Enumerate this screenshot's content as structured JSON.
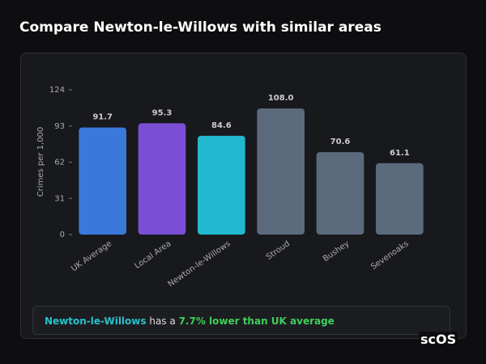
{
  "header": {
    "title": "Compare Newton-le-Willows with similar areas"
  },
  "chart_data": {
    "type": "bar",
    "y_label": "Crimes per 1,000",
    "categories": [
      "UK Average",
      "Local Area",
      "Newton-le-Willows",
      "Stroud",
      "Bushey",
      "Sevenoaks"
    ],
    "values": [
      91.7,
      95.3,
      84.6,
      108,
      70.6,
      61.1
    ],
    "value_labels": [
      "91.7",
      "95.3",
      "84.6",
      "108.0",
      "70.6",
      "61.1"
    ],
    "colors": [
      "#3a78dc",
      "#7a4fd6",
      "#22b8d0",
      "#5c6a7e",
      "#5c6a7e",
      "#5c6a7e"
    ],
    "ylim": [
      0,
      124
    ],
    "yticks": [
      0,
      31,
      62,
      93,
      124
    ]
  },
  "summary": {
    "place": "Newton-le-Willows",
    "text": "has a",
    "highlight": "7.7% lower than UK average"
  },
  "logo": "scOS"
}
